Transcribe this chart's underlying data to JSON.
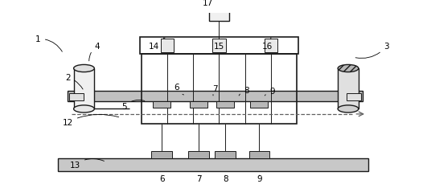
{
  "bg_color": "#ffffff",
  "lc": "#1a1a1a",
  "gray_plate": "#c8c8c8",
  "gray_light": "#e8e8e8",
  "gray_mid": "#b0b0b0",
  "hatch_gray": "#a0a0a0"
}
